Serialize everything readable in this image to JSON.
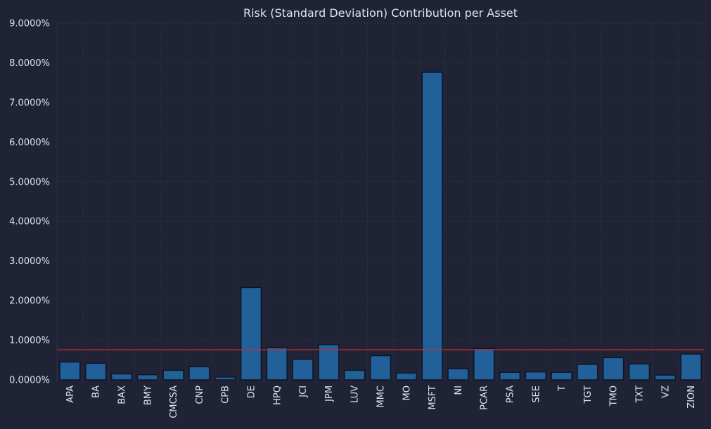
{
  "chart_data": {
    "type": "bar",
    "title": "Risk (Standard Deviation) Contribution per Asset",
    "xlabel": "",
    "ylabel": "",
    "categories": [
      "APA",
      "BA",
      "BAX",
      "BMY",
      "CMCSA",
      "CNP",
      "CPB",
      "DE",
      "HPQ",
      "JCI",
      "JPM",
      "LUV",
      "MMC",
      "MO",
      "MSFT",
      "NI",
      "PCAR",
      "PSA",
      "SEE",
      "T",
      "TGT",
      "TMO",
      "TXT",
      "VZ",
      "ZION"
    ],
    "values": [
      0.45,
      0.42,
      0.15,
      0.13,
      0.24,
      0.33,
      0.07,
      2.33,
      0.81,
      0.52,
      0.89,
      0.24,
      0.61,
      0.17,
      7.76,
      0.28,
      0.79,
      0.19,
      0.2,
      0.19,
      0.39,
      0.56,
      0.4,
      0.12,
      0.65
    ],
    "y_unit": "%",
    "ylim": [
      0,
      9
    ],
    "y_ticks": [
      "0.0000%",
      "1.0000%",
      "2.0000%",
      "3.0000%",
      "4.0000%",
      "5.0000%",
      "6.0000%",
      "7.0000%",
      "8.0000%",
      "9.0000%"
    ],
    "reference_line": 0.76,
    "grid": true,
    "legend": "none",
    "colors": {
      "background": "#1f2335",
      "bar_fill": "#22609a",
      "bar_edge": "#0f1424",
      "reference_line": "#d42a2a",
      "text": "#dfe3ee",
      "grid": "#2c3148"
    }
  }
}
